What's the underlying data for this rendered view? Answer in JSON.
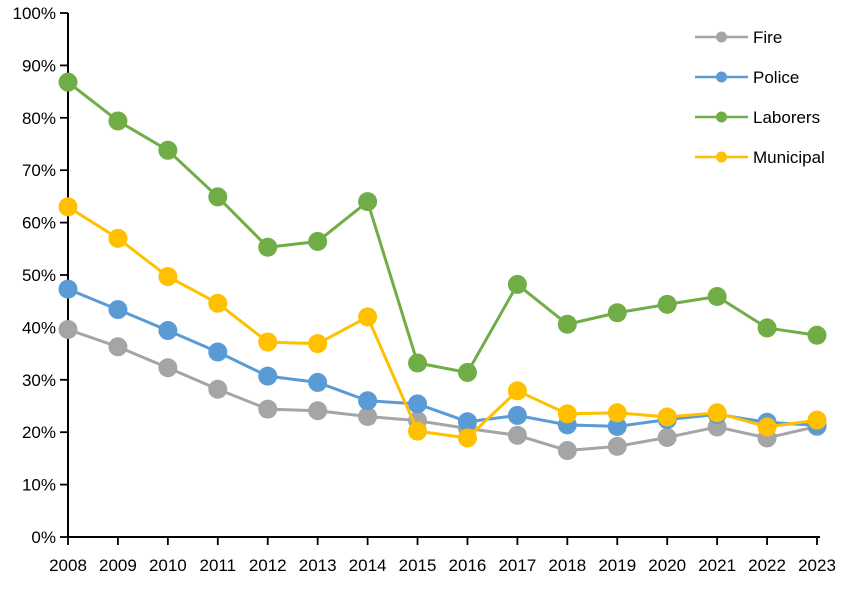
{
  "chart_data": {
    "type": "line",
    "title": "",
    "xlabel": "",
    "ylabel": "",
    "x": [
      "2008",
      "2009",
      "2010",
      "2011",
      "2012",
      "2013",
      "2014",
      "2015",
      "2016",
      "2017",
      "2018",
      "2019",
      "2020",
      "2021",
      "2022",
      "2023"
    ],
    "ylim": [
      0,
      100
    ],
    "ytick_step": 10,
    "ytick_labels": [
      "0%",
      "10%",
      "20%",
      "30%",
      "40%",
      "50%",
      "60%",
      "70%",
      "80%",
      "90%",
      "100%"
    ],
    "grid": false,
    "legend_position": "top-right",
    "axis_color": "#000000",
    "series": [
      {
        "name": "Fire",
        "color": "#A5A5A5",
        "marker": "circle",
        "values": [
          39.6,
          36.3,
          32.3,
          28.2,
          24.4,
          24.1,
          23.0,
          22.2,
          20.7,
          19.4,
          16.5,
          17.3,
          19.0,
          21.0,
          18.9,
          21.1
        ]
      },
      {
        "name": "Police",
        "color": "#5B9BD5",
        "marker": "circle",
        "values": [
          47.3,
          43.4,
          39.4,
          35.3,
          30.7,
          29.5,
          26.0,
          25.4,
          22.0,
          23.2,
          21.4,
          21.1,
          22.4,
          23.4,
          21.9,
          21.3
        ]
      },
      {
        "name": "Laborers",
        "color": "#70AD47",
        "marker": "circle",
        "values": [
          86.8,
          79.4,
          73.8,
          64.9,
          55.3,
          56.4,
          64.0,
          33.2,
          31.4,
          48.2,
          40.6,
          42.8,
          44.4,
          45.9,
          39.9,
          38.5
        ]
      },
      {
        "name": "Municipal",
        "color": "#FFC000",
        "marker": "circle",
        "values": [
          63.0,
          57.0,
          49.7,
          44.6,
          37.2,
          36.9,
          42.0,
          20.2,
          18.9,
          27.9,
          23.5,
          23.7,
          22.9,
          23.7,
          21.0,
          22.3
        ]
      }
    ]
  }
}
